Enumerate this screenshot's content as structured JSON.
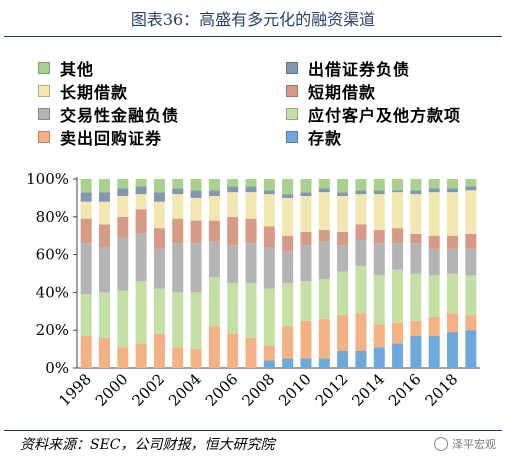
{
  "title": "图表36：高盛有多元化的融资渠道",
  "source": "资料来源：SEC，公司财报，恒大研究院",
  "watermark": "泽平宏观",
  "chart_data": {
    "type": "bar",
    "stacked": true,
    "percent": true,
    "legend_position": "top",
    "grid": false,
    "ylim": [
      0,
      100
    ],
    "y_ticks": [
      "0%",
      "20%",
      "40%",
      "60%",
      "80%",
      "100%"
    ],
    "x_tick_labels": [
      "1998",
      "2000",
      "2002",
      "2004",
      "2006",
      "2008",
      "2010",
      "2012",
      "2014",
      "2016",
      "2018"
    ],
    "categories": [
      "1998",
      "1999",
      "2000",
      "2001",
      "2002",
      "2003",
      "2004",
      "2005",
      "2006",
      "2007",
      "2008",
      "2009",
      "2010",
      "2011",
      "2012",
      "2013",
      "2014",
      "2015",
      "2016",
      "2017",
      "2018",
      "2019"
    ],
    "series": [
      {
        "name": "存款",
        "color": "#6fa8dc",
        "values": [
          0,
          0,
          0,
          0,
          0,
          0,
          0,
          0,
          0,
          0,
          4,
          5,
          5,
          5,
          9,
          9,
          11,
          13,
          17,
          17,
          19,
          20
        ]
      },
      {
        "name": "卖出回购证券",
        "color": "#f4b183",
        "values": [
          17,
          16,
          11,
          13,
          18,
          11,
          10,
          22,
          18,
          16,
          8,
          17,
          20,
          21,
          19,
          20,
          12,
          11,
          8,
          10,
          10,
          8
        ]
      },
      {
        "name": "应付客户及他方款项",
        "color": "#c5e0a5",
        "values": [
          22,
          24,
          30,
          33,
          24,
          29,
          30,
          26,
          27,
          29,
          30,
          23,
          21,
          21,
          23,
          25,
          26,
          28,
          25,
          22,
          21,
          21
        ]
      },
      {
        "name": "交易性金融负债",
        "color": "#b4b4b4",
        "values": [
          27,
          24,
          28,
          25,
          21,
          26,
          26,
          19,
          20,
          21,
          22,
          17,
          19,
          20,
          14,
          14,
          17,
          14,
          16,
          14,
          13,
          14
        ]
      },
      {
        "name": "短期借款",
        "color": "#d79a87",
        "values": [
          13,
          12,
          11,
          13,
          11,
          13,
          12,
          11,
          15,
          13,
          11,
          8,
          7,
          6,
          7,
          8,
          7,
          8,
          5,
          7,
          7,
          8
        ]
      },
      {
        "name": "长期借款",
        "color": "#f3e7b1",
        "values": [
          9,
          12,
          11,
          8,
          14,
          13,
          12,
          13,
          13,
          14,
          17,
          20,
          19,
          20,
          19,
          16,
          19,
          19,
          21,
          23,
          23,
          23
        ]
      },
      {
        "name": "出借证券负债",
        "color": "#8497b0",
        "values": [
          5,
          5,
          4,
          4,
          5,
          3,
          4,
          3,
          3,
          3,
          2,
          2,
          2,
          2,
          2,
          2,
          2,
          1,
          2,
          2,
          2,
          2
        ]
      },
      {
        "name": "其他",
        "color": "#a9d18e",
        "values": [
          7,
          7,
          5,
          4,
          7,
          5,
          6,
          6,
          4,
          4,
          6,
          8,
          7,
          5,
          7,
          6,
          6,
          6,
          6,
          5,
          5,
          4
        ]
      }
    ],
    "legend_order": [
      "其他",
      "出借证券负债",
      "长期借款",
      "短期借款",
      "交易性金融负债",
      "应付客户及他方款项",
      "卖出回购证券",
      "存款"
    ]
  }
}
